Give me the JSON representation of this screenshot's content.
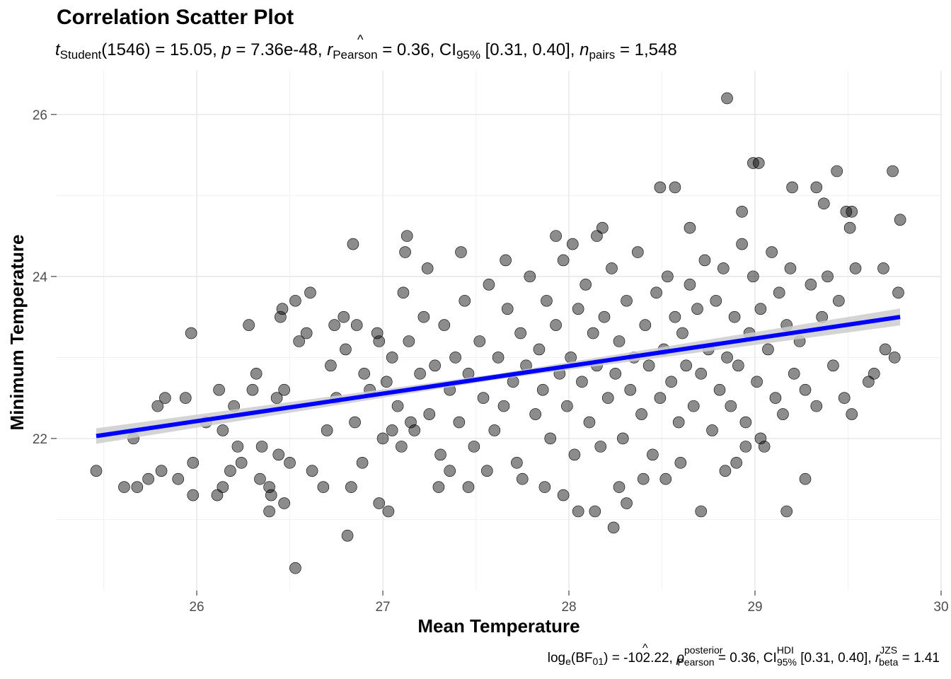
{
  "chart_data": {
    "type": "scatter",
    "title": "Correlation Scatter Plot",
    "subtitle": {
      "t_label": "t",
      "t_sub": "Student",
      "df": "(1546)",
      "t_value": " = 15.05, ",
      "p_label": "p",
      "p_value": " =  7.36e-48, ",
      "r_label": "r",
      "r_hat": "^",
      "r_sub": "Pearson",
      "r_value": " =  0.36, CI",
      "ci_sub": "95%",
      "ci_value": " [0.31, 0.40], ",
      "n_label": "n",
      "n_sub": "pairs",
      "n_value": " = 1,548"
    },
    "caption": {
      "log": "log",
      "log_sub": "e",
      "bf_open": "(BF",
      "bf_sub": "01",
      "bf_close": ")",
      "bf_value": " = -102.22, ",
      "rho": "ρ",
      "rho_hat": "^",
      "rho_sup": "posterior",
      "rho_sub": "Pearson",
      "rho_value": " = 0.36, CI",
      "ci_sup": "HDI",
      "ci_sub": "95%",
      "ci_value": " [0.31, 0.40], ",
      "r": "r",
      "r_sup": "JZS",
      "r_sub": "beta",
      "r_value": " = 1.41"
    },
    "xlabel": "Mean Temperature",
    "ylabel": "Minimum Temperature",
    "xlim": [
      25.247,
      30.0
    ],
    "ylim": [
      20.122,
      26.54
    ],
    "xticks": [
      "26",
      "27",
      "28",
      "29",
      "30"
    ],
    "yticks": [
      "22",
      "24",
      "26"
    ],
    "grid": true,
    "fit": {
      "x": [
        25.46,
        29.78
      ],
      "y": [
        22.03,
        23.5
      ],
      "color": "#0000ff",
      "band_color": "#cccccc"
    },
    "points": [
      [
        25.46,
        21.6
      ],
      [
        25.61,
        21.4
      ],
      [
        25.68,
        21.4
      ],
      [
        25.66,
        22.0
      ],
      [
        25.74,
        21.5
      ],
      [
        25.79,
        22.4
      ],
      [
        25.81,
        21.6
      ],
      [
        25.83,
        22.5
      ],
      [
        25.9,
        21.5
      ],
      [
        25.94,
        22.5
      ],
      [
        25.97,
        23.3
      ],
      [
        25.98,
        21.3
      ],
      [
        25.98,
        21.7
      ],
      [
        26.05,
        22.2
      ],
      [
        26.11,
        21.3
      ],
      [
        26.12,
        22.6
      ],
      [
        26.14,
        21.4
      ],
      [
        26.14,
        22.1
      ],
      [
        26.18,
        21.6
      ],
      [
        26.2,
        22.4
      ],
      [
        26.22,
        21.9
      ],
      [
        26.24,
        21.7
      ],
      [
        26.28,
        23.4
      ],
      [
        26.3,
        22.6
      ],
      [
        26.32,
        22.8
      ],
      [
        26.34,
        21.5
      ],
      [
        26.35,
        21.9
      ],
      [
        26.39,
        21.4
      ],
      [
        26.39,
        21.1
      ],
      [
        26.4,
        21.3
      ],
      [
        26.43,
        22.5
      ],
      [
        26.44,
        21.8
      ],
      [
        26.45,
        23.5
      ],
      [
        26.46,
        23.6
      ],
      [
        26.47,
        22.6
      ],
      [
        26.47,
        21.2
      ],
      [
        26.5,
        21.7
      ],
      [
        26.53,
        23.7
      ],
      [
        26.53,
        20.4
      ],
      [
        26.55,
        23.2
      ],
      [
        26.59,
        23.3
      ],
      [
        26.61,
        23.8
      ],
      [
        26.62,
        21.6
      ],
      [
        26.68,
        21.4
      ],
      [
        26.7,
        22.1
      ],
      [
        26.74,
        23.4
      ],
      [
        26.79,
        23.5
      ],
      [
        26.81,
        20.8
      ],
      [
        26.83,
        21.4
      ],
      [
        26.84,
        24.4
      ],
      [
        26.86,
        23.4
      ],
      [
        26.89,
        21.7
      ],
      [
        26.98,
        21.2
      ],
      [
        27.03,
        21.1
      ],
      [
        27.12,
        24.3
      ],
      [
        27.13,
        24.5
      ],
      [
        27.11,
        23.8
      ],
      [
        27.24,
        24.1
      ],
      [
        27.3,
        21.4
      ],
      [
        27.36,
        21.6
      ],
      [
        27.42,
        24.3
      ],
      [
        27.46,
        21.4
      ],
      [
        27.87,
        21.4
      ],
      [
        27.97,
        21.3
      ],
      [
        28.05,
        21.1
      ],
      [
        28.14,
        21.1
      ],
      [
        28.18,
        24.6
      ],
      [
        28.24,
        20.9
      ],
      [
        28.27,
        21.4
      ],
      [
        28.31,
        21.2
      ],
      [
        28.49,
        25.1
      ],
      [
        28.57,
        25.1
      ],
      [
        28.6,
        21.7
      ],
      [
        28.65,
        24.6
      ],
      [
        28.71,
        21.1
      ],
      [
        28.85,
        26.2
      ],
      [
        28.84,
        21.6
      ],
      [
        28.9,
        21.7
      ],
      [
        28.93,
        24.8
      ],
      [
        28.99,
        25.4
      ],
      [
        29.02,
        25.4
      ],
      [
        29.17,
        21.1
      ],
      [
        29.2,
        25.1
      ],
      [
        29.27,
        21.5
      ],
      [
        29.33,
        25.1
      ],
      [
        29.37,
        24.9
      ],
      [
        29.44,
        25.3
      ],
      [
        29.49,
        24.8
      ],
      [
        29.52,
        24.8
      ],
      [
        29.51,
        24.6
      ],
      [
        29.54,
        24.1
      ],
      [
        29.52,
        22.3
      ],
      [
        29.61,
        22.7
      ],
      [
        29.64,
        22.8
      ],
      [
        29.69,
        24.1
      ],
      [
        29.7,
        23.1
      ],
      [
        29.74,
        25.3
      ],
      [
        29.75,
        23.0
      ],
      [
        29.77,
        23.8
      ],
      [
        29.78,
        24.7
      ],
      [
        26.72,
        22.9
      ],
      [
        26.75,
        22.5
      ],
      [
        26.8,
        23.1
      ],
      [
        26.85,
        22.2
      ],
      [
        26.9,
        22.8
      ],
      [
        26.93,
        22.6
      ],
      [
        26.97,
        23.3
      ],
      [
        27.0,
        22.0
      ],
      [
        27.02,
        22.7
      ],
      [
        27.05,
        23.0
      ],
      [
        27.08,
        22.4
      ],
      [
        27.1,
        21.9
      ],
      [
        27.14,
        23.2
      ],
      [
        27.17,
        22.1
      ],
      [
        27.2,
        22.8
      ],
      [
        27.22,
        23.5
      ],
      [
        27.25,
        22.3
      ],
      [
        27.28,
        22.9
      ],
      [
        27.31,
        21.8
      ],
      [
        27.33,
        23.4
      ],
      [
        27.36,
        22.6
      ],
      [
        27.39,
        23.0
      ],
      [
        27.41,
        22.2
      ],
      [
        27.44,
        23.7
      ],
      [
        27.46,
        22.8
      ],
      [
        27.49,
        21.9
      ],
      [
        27.52,
        23.2
      ],
      [
        27.54,
        22.5
      ],
      [
        27.57,
        23.9
      ],
      [
        27.6,
        22.1
      ],
      [
        27.62,
        23.0
      ],
      [
        27.65,
        22.4
      ],
      [
        27.67,
        23.6
      ],
      [
        27.7,
        22.7
      ],
      [
        27.72,
        21.7
      ],
      [
        27.74,
        23.3
      ],
      [
        27.77,
        22.9
      ],
      [
        27.79,
        24.0
      ],
      [
        27.82,
        22.3
      ],
      [
        27.84,
        23.1
      ],
      [
        27.86,
        22.6
      ],
      [
        27.88,
        23.7
      ],
      [
        27.9,
        22.0
      ],
      [
        27.93,
        23.4
      ],
      [
        27.95,
        22.8
      ],
      [
        27.97,
        24.2
      ],
      [
        27.99,
        22.4
      ],
      [
        28.01,
        23.0
      ],
      [
        28.03,
        21.8
      ],
      [
        28.05,
        23.6
      ],
      [
        28.07,
        22.7
      ],
      [
        28.09,
        23.9
      ],
      [
        28.11,
        22.2
      ],
      [
        28.13,
        23.3
      ],
      [
        28.15,
        22.9
      ],
      [
        28.17,
        21.9
      ],
      [
        28.19,
        23.5
      ],
      [
        28.21,
        22.5
      ],
      [
        28.23,
        24.1
      ],
      [
        28.25,
        22.8
      ],
      [
        28.27,
        23.2
      ],
      [
        28.29,
        22.0
      ],
      [
        28.31,
        23.7
      ],
      [
        28.33,
        22.6
      ],
      [
        28.35,
        23.0
      ],
      [
        28.37,
        24.3
      ],
      [
        28.39,
        22.3
      ],
      [
        28.41,
        23.4
      ],
      [
        28.43,
        22.9
      ],
      [
        28.45,
        21.8
      ],
      [
        28.47,
        23.8
      ],
      [
        28.49,
        22.5
      ],
      [
        28.51,
        23.1
      ],
      [
        28.53,
        24.0
      ],
      [
        28.55,
        22.7
      ],
      [
        28.57,
        23.5
      ],
      [
        28.59,
        22.2
      ],
      [
        28.61,
        23.3
      ],
      [
        28.63,
        22.9
      ],
      [
        28.65,
        23.9
      ],
      [
        28.67,
        22.4
      ],
      [
        28.69,
        23.6
      ],
      [
        28.71,
        22.8
      ],
      [
        28.73,
        24.2
      ],
      [
        28.75,
        23.1
      ],
      [
        28.77,
        22.1
      ],
      [
        28.79,
        23.7
      ],
      [
        28.81,
        22.6
      ],
      [
        28.83,
        24.1
      ],
      [
        28.85,
        23.0
      ],
      [
        28.87,
        22.4
      ],
      [
        28.89,
        23.5
      ],
      [
        28.91,
        22.9
      ],
      [
        28.93,
        24.4
      ],
      [
        28.95,
        22.2
      ],
      [
        28.97,
        23.3
      ],
      [
        28.99,
        24.0
      ],
      [
        29.01,
        22.7
      ],
      [
        29.03,
        23.6
      ],
      [
        29.05,
        21.9
      ],
      [
        29.07,
        23.1
      ],
      [
        29.09,
        24.3
      ],
      [
        29.11,
        22.5
      ],
      [
        29.13,
        23.8
      ],
      [
        29.15,
        22.3
      ],
      [
        29.17,
        23.4
      ],
      [
        29.19,
        24.1
      ],
      [
        29.21,
        22.8
      ],
      [
        29.24,
        23.2
      ],
      [
        29.27,
        22.6
      ],
      [
        29.3,
        23.9
      ],
      [
        29.33,
        22.4
      ],
      [
        29.36,
        23.5
      ],
      [
        29.39,
        24.0
      ],
      [
        29.42,
        22.9
      ],
      [
        29.45,
        23.7
      ],
      [
        29.48,
        22.5
      ],
      [
        29.03,
        22.0
      ],
      [
        28.15,
        24.5
      ],
      [
        27.93,
        24.5
      ],
      [
        28.02,
        24.4
      ],
      [
        27.66,
        24.2
      ],
      [
        27.75,
        21.5
      ],
      [
        27.56,
        21.6
      ],
      [
        28.4,
        21.5
      ],
      [
        28.52,
        21.5
      ],
      [
        28.95,
        21.9
      ],
      [
        26.98,
        23.2
      ],
      [
        27.05,
        22.1
      ],
      [
        27.15,
        22.2
      ]
    ]
  }
}
